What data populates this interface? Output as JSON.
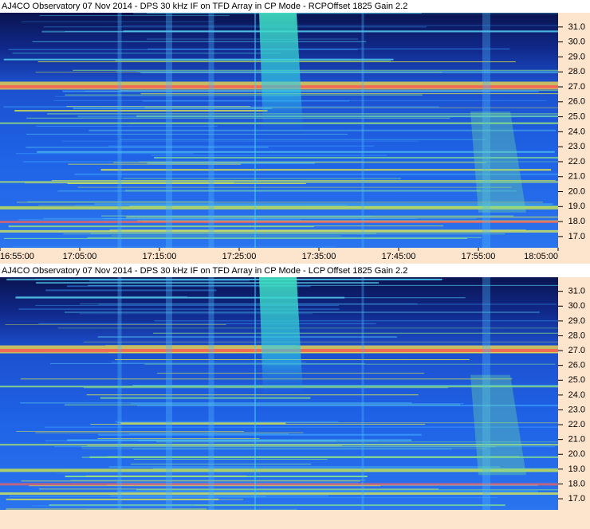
{
  "chart_data": [
    {
      "type": "spectrogram",
      "title": "AJ4CO Observatory 07 Nov 2014 - DPS 30 kHz IF on TFD Array in CP Mode - RCP",
      "subtitle": "Offset 1825  Gain 2.2",
      "ylim": [
        16.25,
        31.95
      ],
      "yticks": [
        {
          "value": 31,
          "label": "31.0"
        },
        {
          "value": 30,
          "label": "30.0"
        },
        {
          "value": 29,
          "label": "29.0"
        },
        {
          "value": 28,
          "label": "28.0"
        },
        {
          "value": 27,
          "label": "27.0"
        },
        {
          "value": 26,
          "label": "26.0"
        },
        {
          "value": 25,
          "label": "25.0"
        },
        {
          "value": 24,
          "label": "24.0"
        },
        {
          "value": 23,
          "label": "23.0"
        },
        {
          "value": 22,
          "label": "22.0"
        },
        {
          "value": 21,
          "label": "21.0"
        },
        {
          "value": 20,
          "label": "20.0"
        },
        {
          "value": 19,
          "label": "19.0"
        },
        {
          "value": 18,
          "label": "18.0"
        },
        {
          "value": 17,
          "label": "17.0"
        }
      ],
      "xlim": [
        "16:55:00",
        "18:05:00"
      ],
      "xticks": [
        "16:55:00",
        "17:05:00",
        "17:15:00",
        "17:25:00",
        "17:35:00",
        "17:45:00",
        "17:55:00",
        "18:05:00"
      ]
    },
    {
      "type": "spectrogram",
      "title": "AJ4CO Observatory 07 Nov 2014 - DPS 30 kHz IF on TFD Array in CP Mode - LCP",
      "subtitle": "Offset 1825  Gain 2.2",
      "ylim": [
        16.25,
        31.95
      ],
      "yticks": [
        {
          "value": 31,
          "label": "31.0"
        },
        {
          "value": 30,
          "label": "30.0"
        },
        {
          "value": 29,
          "label": "29.0"
        },
        {
          "value": 28,
          "label": "28.0"
        },
        {
          "value": 27,
          "label": "27.0"
        },
        {
          "value": 26,
          "label": "26.0"
        },
        {
          "value": 25,
          "label": "25.0"
        },
        {
          "value": 24,
          "label": "24.0"
        },
        {
          "value": 23,
          "label": "23.0"
        },
        {
          "value": 22,
          "label": "22.0"
        },
        {
          "value": 21,
          "label": "21.0"
        },
        {
          "value": 20,
          "label": "20.0"
        },
        {
          "value": 19,
          "label": "19.0"
        },
        {
          "value": 18,
          "label": "18.0"
        },
        {
          "value": 17,
          "label": "17.0"
        }
      ]
    }
  ]
}
